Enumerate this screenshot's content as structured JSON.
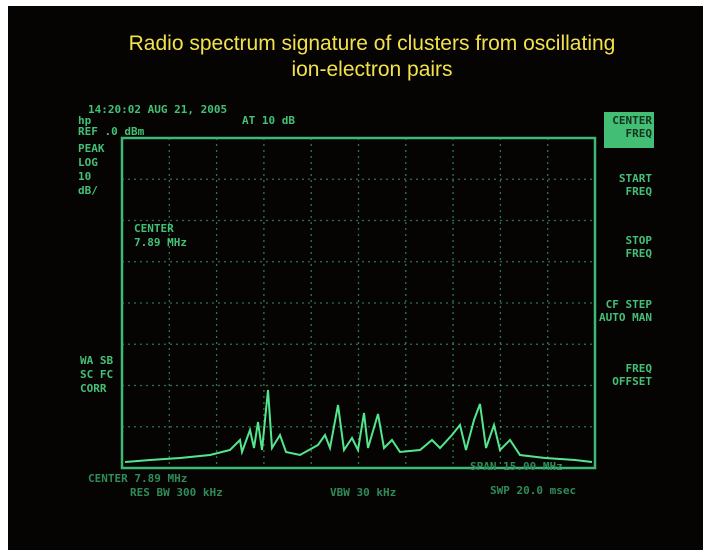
{
  "title_lines": [
    "Radio spectrum signature of clusters from oscillating",
    "ion-electron pairs"
  ],
  "screen": {
    "timestamp": "14:20:02 AUG 21, 2005",
    "ref": "REF .0 dBm",
    "atten": "AT 10 dB",
    "left_labels": [
      "hp",
      "PEAK",
      "LOG",
      "10",
      "dB/"
    ],
    "marker": [
      "CENTER",
      "7.89 MHz"
    ],
    "corr_labels": [
      "WA SB",
      "SC FC",
      "CORR"
    ],
    "softkeys": [
      [
        "CENTER",
        "FREQ"
      ],
      [
        "START",
        "FREQ"
      ],
      [
        "STOP",
        "FREQ"
      ],
      [
        "CF STEP",
        "AUTO MAN"
      ],
      [
        "FREQ",
        "OFFSET"
      ]
    ],
    "bottom_left": [
      "CENTER 7.89 MHz",
      "RES BW 300 kHz"
    ],
    "bottom_mid": "VBW 30 kHz",
    "bottom_right": [
      "SPAN 15.00 MHz",
      "SWP 20.0 msec"
    ]
  }
}
